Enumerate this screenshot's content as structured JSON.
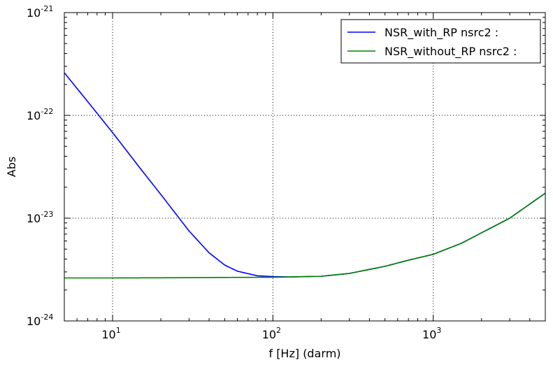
{
  "chart_data": {
    "type": "line",
    "xlabel": "f [Hz] (darm)",
    "ylabel": "Abs",
    "xscale": "log",
    "yscale": "log",
    "xlim": [
      5,
      5000
    ],
    "ylim": [
      1e-24,
      1e-21
    ],
    "grid": true,
    "legend_position": "top-right",
    "x_ticks": [
      {
        "value": 10,
        "base": "10",
        "exp": "1"
      },
      {
        "value": 100,
        "base": "10",
        "exp": "2"
      },
      {
        "value": 1000,
        "base": "10",
        "exp": "3"
      }
    ],
    "y_ticks": [
      {
        "value": 1e-24,
        "base": "10",
        "exp": "-24"
      },
      {
        "value": 1e-23,
        "base": "10",
        "exp": "-23"
      },
      {
        "value": 1e-22,
        "base": "10",
        "exp": "-22"
      },
      {
        "value": 1e-21,
        "base": "10",
        "exp": "-21"
      }
    ],
    "series": [
      {
        "name": "NSR_with_RP nsrc2 :",
        "color": "#0000ff",
        "x": [
          5,
          8,
          10,
          15,
          20,
          30,
          40,
          50,
          60,
          80,
          100,
          130,
          200,
          300,
          500,
          700,
          1000,
          1500,
          2000,
          3000,
          5000
        ],
        "y": [
          2.6e-22,
          1.05e-22,
          6.8e-23,
          3e-23,
          1.7e-23,
          7.5e-24,
          4.6e-24,
          3.5e-24,
          3.05e-24,
          2.75e-24,
          2.7e-24,
          2.68e-24,
          2.72e-24,
          2.9e-24,
          3.4e-24,
          3.9e-24,
          4.45e-24,
          5.7e-24,
          7.2e-24,
          1e-23,
          1.75e-23
        ]
      },
      {
        "name": "NSR_without_RP nsrc2 :",
        "color": "#008000",
        "x": [
          5,
          10,
          20,
          50,
          100,
          130,
          200,
          300,
          500,
          700,
          1000,
          1500,
          2000,
          3000,
          5000
        ],
        "y": [
          2.62e-24,
          2.62e-24,
          2.63e-24,
          2.65e-24,
          2.66e-24,
          2.68e-24,
          2.72e-24,
          2.9e-24,
          3.4e-24,
          3.9e-24,
          4.45e-24,
          5.7e-24,
          7.2e-24,
          1e-23,
          1.75e-23
        ]
      }
    ]
  }
}
